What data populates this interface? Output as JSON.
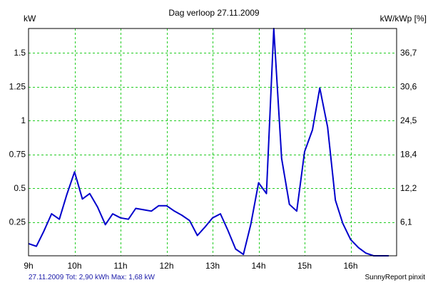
{
  "chart_data": {
    "type": "line",
    "title": "Dag  verloop 27.11.2009",
    "ylabel_left": "kW",
    "ylabel_right": "kW/kWp [%]",
    "ylim": [
      0,
      1.68
    ],
    "x_ticks": [
      9,
      10,
      11,
      12,
      13,
      14,
      15,
      16
    ],
    "x_tick_labels": [
      "9h",
      "10h",
      "11h",
      "12h",
      "13h",
      "14h",
      "15h",
      "16h"
    ],
    "xlim": [
      9,
      17
    ],
    "y_ticks": [
      0.25,
      0.5,
      0.75,
      1,
      1.25,
      1.5
    ],
    "y_tick_labels": [
      "0.25",
      "0.5",
      "0.75",
      "1",
      "1.25",
      "1.5"
    ],
    "y_right_tick_labels": [
      "6,1",
      "12,2",
      "18,4",
      "24,5",
      "30,6",
      "36,7"
    ],
    "grid": true,
    "series": [
      {
        "color": "#0000cc",
        "x": [
          9.0,
          9.17,
          9.33,
          9.5,
          9.67,
          9.83,
          10.0,
          10.17,
          10.33,
          10.5,
          10.67,
          10.83,
          11.0,
          11.17,
          11.33,
          11.5,
          11.67,
          11.83,
          12.0,
          12.17,
          12.33,
          12.5,
          12.67,
          12.83,
          13.0,
          13.17,
          13.33,
          13.5,
          13.67,
          13.83,
          14.0,
          14.17,
          14.33,
          14.5,
          14.67,
          14.83,
          15.0,
          15.17,
          15.33,
          15.5,
          15.67,
          15.83,
          16.0,
          16.17,
          16.33,
          16.5,
          16.67,
          16.83
        ],
        "y": [
          0.09,
          0.07,
          0.18,
          0.31,
          0.27,
          0.45,
          0.62,
          0.42,
          0.46,
          0.36,
          0.23,
          0.31,
          0.28,
          0.27,
          0.35,
          0.34,
          0.33,
          0.37,
          0.37,
          0.33,
          0.3,
          0.26,
          0.15,
          0.21,
          0.28,
          0.31,
          0.19,
          0.05,
          0.01,
          0.23,
          0.54,
          0.46,
          1.68,
          0.72,
          0.38,
          0.33,
          0.77,
          0.93,
          1.24,
          0.95,
          0.41,
          0.24,
          0.12,
          0.06,
          0.02,
          0.0,
          0.0,
          0.0
        ]
      }
    ]
  },
  "footer": {
    "left": "27.11.2009 Tot: 2,90 kWh Max: 1,68 kW",
    "right": "SunnyReport pinxit"
  }
}
